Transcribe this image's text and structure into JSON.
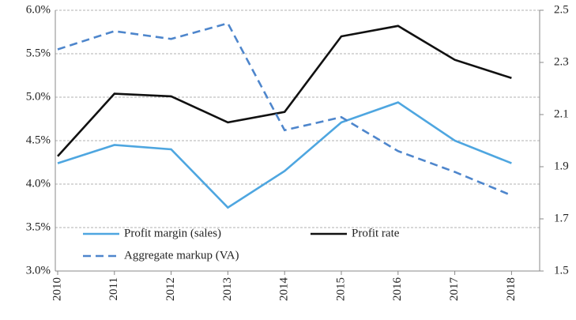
{
  "chart_data": {
    "type": "line",
    "x": [
      "2010",
      "2011",
      "2012",
      "2013",
      "2014",
      "2015",
      "2016",
      "2017",
      "2018"
    ],
    "series": [
      {
        "name": "Profit margin (sales)",
        "color": "#4ea6e0",
        "line_style": "solid",
        "axis": "y",
        "values": [
          4.24,
          4.45,
          4.4,
          3.73,
          4.15,
          4.71,
          4.94,
          4.5,
          4.24
        ]
      },
      {
        "name": "Profit rate",
        "color": "#111111",
        "line_style": "solid",
        "axis": "y2",
        "values": [
          1.94,
          2.18,
          2.17,
          2.07,
          2.11,
          2.4,
          2.44,
          2.31,
          2.24
        ]
      },
      {
        "name": "Aggregate markup (VA)",
        "color": "#4e86cc",
        "line_style": "dashed",
        "axis": "y2",
        "values": [
          2.35,
          2.42,
          2.39,
          2.45,
          2.04,
          2.09,
          1.96,
          1.88,
          1.79
        ]
      }
    ],
    "ylim": [
      3.0,
      6.0
    ],
    "yticks": [
      {
        "value": 3.0,
        "label": "3.0%"
      },
      {
        "value": 3.5,
        "label": "3.5%"
      },
      {
        "value": 4.0,
        "label": "4.0%"
      },
      {
        "value": 4.5,
        "label": "4.5%"
      },
      {
        "value": 5.0,
        "label": "5.0%"
      },
      {
        "value": 5.5,
        "label": "5.5%"
      },
      {
        "value": 6.0,
        "label": "6.0%"
      }
    ],
    "y2lim": [
      1.5,
      2.5
    ],
    "y2ticks": [
      1.5,
      1.7,
      1.9,
      2.1,
      2.3,
      2.5
    ],
    "grid": true,
    "legend": "lower left"
  }
}
